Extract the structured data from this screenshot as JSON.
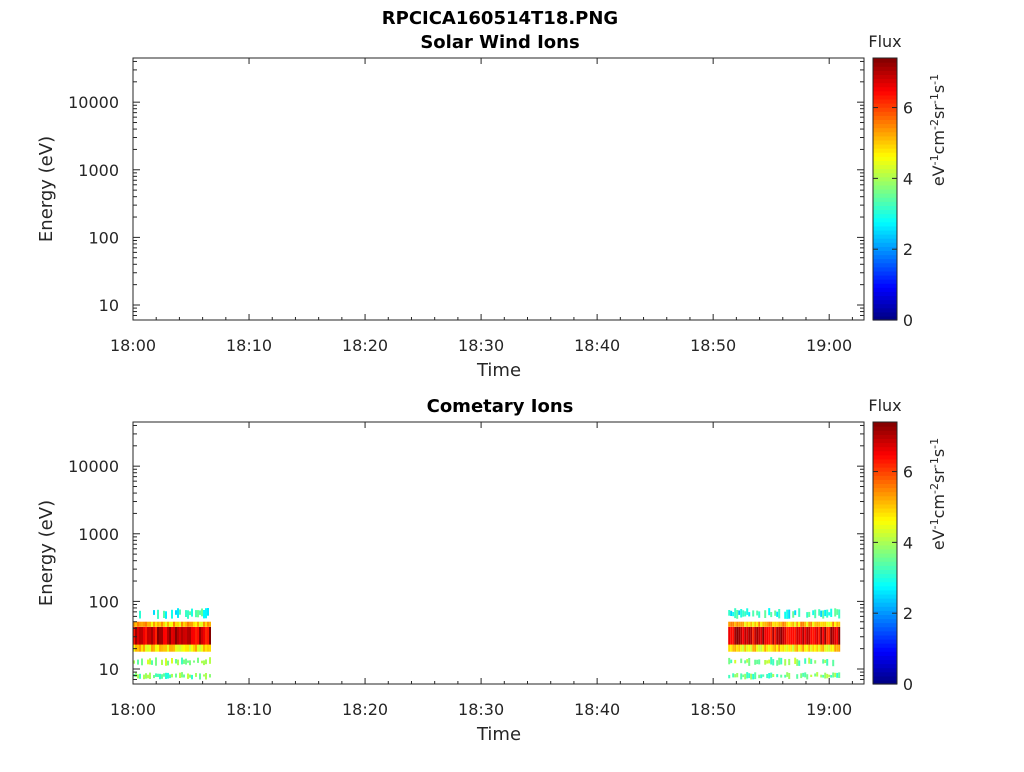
{
  "figure": {
    "filename": "RPCICA160514T18.PNG"
  },
  "chart_data": [
    {
      "type": "heatmap",
      "title": "Solar Wind Ions",
      "xlabel": "Time",
      "ylabel": "Energy (eV)",
      "x_ticks": [
        "18:00",
        "18:10",
        "18:20",
        "18:30",
        "18:40",
        "18:50",
        "19:00"
      ],
      "y_ticks": [
        "10",
        "100",
        "1000",
        "10000"
      ],
      "y_scale": "log",
      "y_range": [
        6,
        45000
      ],
      "x_range_minutes": [
        0,
        63
      ],
      "colorbar": {
        "label": "Flux",
        "units": "eV^-1 cm^-2 sr^-1 s^-1",
        "range": [
          0,
          7.4
        ],
        "ticks": [
          "0",
          "2",
          "4",
          "6"
        ]
      },
      "blocks": []
    },
    {
      "type": "heatmap",
      "title": "Cometary Ions",
      "xlabel": "Time",
      "ylabel": "Energy (eV)",
      "x_ticks": [
        "18:00",
        "18:10",
        "18:20",
        "18:30",
        "18:40",
        "18:50",
        "19:00"
      ],
      "y_ticks": [
        "10",
        "100",
        "1000",
        "10000"
      ],
      "y_scale": "log",
      "y_range": [
        6,
        45000
      ],
      "x_range_minutes": [
        0,
        63
      ],
      "colorbar": {
        "label": "Flux",
        "units": "eV^-1 cm^-2 sr^-1 s^-1",
        "range": [
          0,
          7.4
        ],
        "ticks": [
          "0",
          "2",
          "4",
          "6"
        ]
      },
      "blocks": [
        {
          "time_start_min": 0,
          "time_end_min": 6.7,
          "bands": [
            {
              "e_low": 7,
              "e_high": 9,
              "flux": 3.6
            },
            {
              "e_low": 11,
              "e_high": 15,
              "flux": 3.8
            },
            {
              "e_low": 18,
              "e_high": 23,
              "flux": 4.8
            },
            {
              "e_low": 23,
              "e_high": 42,
              "flux": 6.8
            },
            {
              "e_low": 42,
              "e_high": 50,
              "flux": 5.0
            },
            {
              "e_low": 55,
              "e_high": 80,
              "flux": 3.0
            }
          ]
        },
        {
          "time_start_min": 51.3,
          "time_end_min": 60.8,
          "bands": [
            {
              "e_low": 7,
              "e_high": 9,
              "flux": 3.6
            },
            {
              "e_low": 11,
              "e_high": 15,
              "flux": 3.8
            },
            {
              "e_low": 18,
              "e_high": 23,
              "flux": 4.8
            },
            {
              "e_low": 23,
              "e_high": 42,
              "flux": 6.8
            },
            {
              "e_low": 42,
              "e_high": 50,
              "flux": 5.0
            },
            {
              "e_low": 55,
              "e_high": 80,
              "flux": 3.0
            }
          ]
        }
      ]
    }
  ]
}
